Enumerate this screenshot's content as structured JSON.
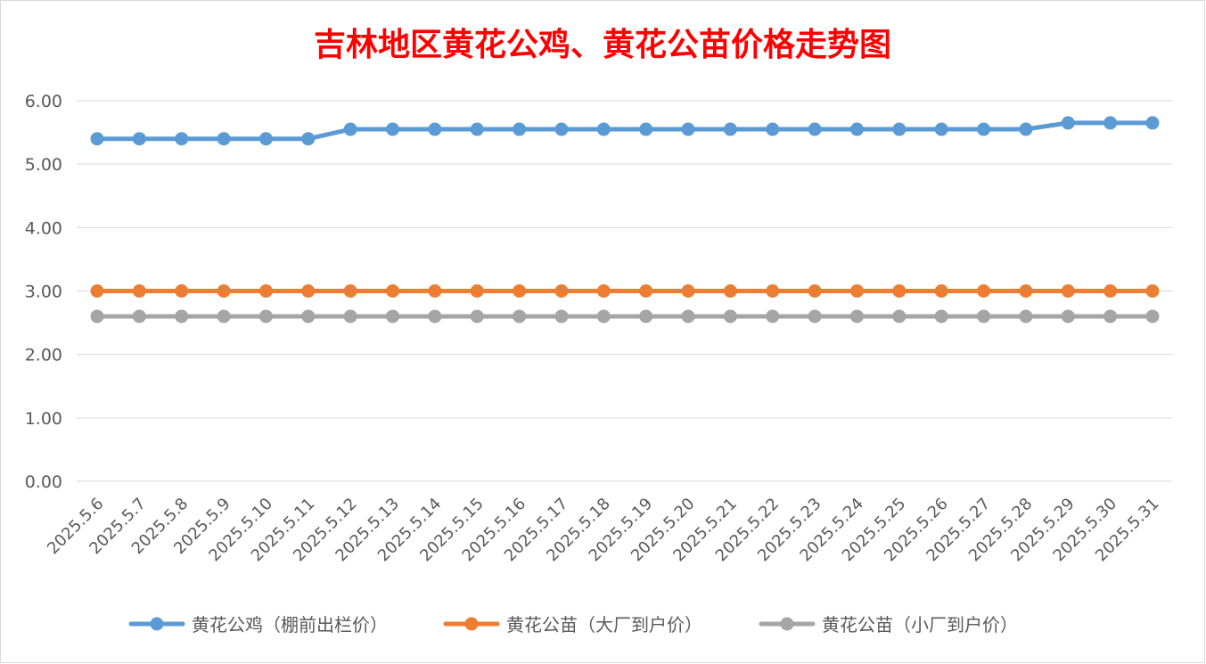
{
  "chart_data": {
    "type": "line",
    "title": "吉林地区黄花公鸡、黄花公苗价格走势图",
    "xlabel": "",
    "ylabel": "",
    "categories": [
      "2025.5.6",
      "2025.5.7",
      "2025.5.8",
      "2025.5.9",
      "2025.5.10",
      "2025.5.11",
      "2025.5.12",
      "2025.5.13",
      "2025.5.14",
      "2025.5.15",
      "2025.5.16",
      "2025.5.17",
      "2025.5.18",
      "2025.5.19",
      "2025.5.20",
      "2025.5.21",
      "2025.5.22",
      "2025.5.23",
      "2025.5.24",
      "2025.5.25",
      "2025.5.26",
      "2025.5.27",
      "2025.5.28",
      "2025.5.29",
      "2025.5.30",
      "2025.5.31"
    ],
    "ylim": [
      0,
      6
    ],
    "yticks": [
      "0.00",
      "1.00",
      "2.00",
      "3.00",
      "4.00",
      "5.00",
      "6.00"
    ],
    "grid": true,
    "legend_position": "bottom",
    "series": [
      {
        "name": "黄花公鸡（棚前出栏价）",
        "color": "#5b9bd5",
        "values": [
          5.4,
          5.4,
          5.4,
          5.4,
          5.4,
          5.4,
          5.55,
          5.55,
          5.55,
          5.55,
          5.55,
          5.55,
          5.55,
          5.55,
          5.55,
          5.55,
          5.55,
          5.55,
          5.55,
          5.55,
          5.55,
          5.55,
          5.55,
          5.65,
          5.65,
          5.65
        ]
      },
      {
        "name": "黄花公苗（大厂到户价）",
        "color": "#ed7d31",
        "values": [
          3.0,
          3.0,
          3.0,
          3.0,
          3.0,
          3.0,
          3.0,
          3.0,
          3.0,
          3.0,
          3.0,
          3.0,
          3.0,
          3.0,
          3.0,
          3.0,
          3.0,
          3.0,
          3.0,
          3.0,
          3.0,
          3.0,
          3.0,
          3.0,
          3.0,
          3.0
        ]
      },
      {
        "name": "黄花公苗（小厂到户价）",
        "color": "#a5a5a5",
        "values": [
          2.6,
          2.6,
          2.6,
          2.6,
          2.6,
          2.6,
          2.6,
          2.6,
          2.6,
          2.6,
          2.6,
          2.6,
          2.6,
          2.6,
          2.6,
          2.6,
          2.6,
          2.6,
          2.6,
          2.6,
          2.6,
          2.6,
          2.6,
          2.6,
          2.6,
          2.6
        ]
      }
    ]
  }
}
